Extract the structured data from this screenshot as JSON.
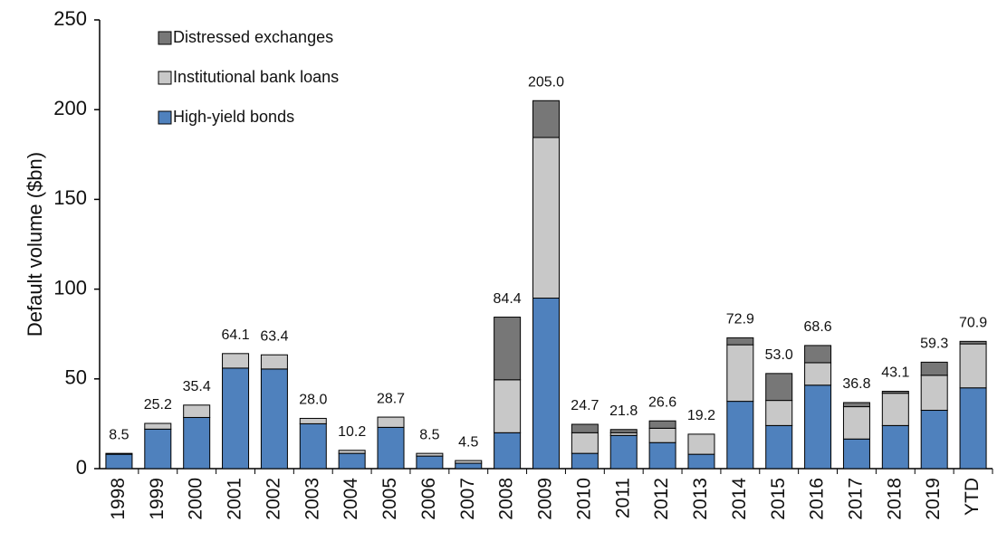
{
  "chart_data": {
    "type": "stacked_bar",
    "y_label": "Default volume ($bn)",
    "categories": [
      "1998",
      "1999",
      "2000",
      "2001",
      "2002",
      "2003",
      "2004",
      "2005",
      "2006",
      "2007",
      "2008",
      "2009",
      "2010",
      "2011",
      "2012",
      "2013",
      "2014",
      "2015",
      "2016",
      "2017",
      "2018",
      "2019",
      "YTD"
    ],
    "series": [
      {
        "name": "High-yield bonds",
        "color": "#4f81bd",
        "values": [
          8.0,
          22,
          28.5,
          56,
          55.5,
          25,
          8.5,
          23,
          7,
          3,
          20,
          95,
          8.5,
          18.5,
          14.5,
          8,
          37.5,
          24,
          46.5,
          16.5,
          24,
          32.5,
          45
        ]
      },
      {
        "name": "Institutional bank loans",
        "color": "#c8c8c8",
        "values": [
          0,
          3.2,
          6.9,
          8.1,
          7.9,
          3,
          1.7,
          5.7,
          1.5,
          1.5,
          29.5,
          89.5,
          11.5,
          1.5,
          8,
          11.2,
          31.5,
          14,
          12.5,
          18,
          18,
          19.5,
          24.5
        ]
      },
      {
        "name": "Distressed exchanges",
        "color": "#777777",
        "values": [
          0.5,
          0,
          0,
          0,
          0,
          0,
          0,
          0,
          0,
          0,
          34.9,
          20.5,
          4.7,
          1.8,
          4.1,
          0,
          3.9,
          15,
          9.6,
          2.3,
          1.1,
          7.3,
          1.4
        ]
      }
    ],
    "totals": [
      8.5,
      25.2,
      35.4,
      64.1,
      63.4,
      28.0,
      10.2,
      28.7,
      8.5,
      4.5,
      84.4,
      205.0,
      24.7,
      21.8,
      26.6,
      19.2,
      72.9,
      53.0,
      68.6,
      36.8,
      43.1,
      59.3,
      70.9
    ],
    "total_labels": [
      "8.5",
      "25.2",
      "35.4",
      "64.1",
      "63.4",
      "28.0",
      "10.2",
      "28.7",
      "8.5",
      "4.5",
      "84.4",
      "205.0",
      "24.7",
      "21.8",
      "26.6",
      "19.2",
      "72.9",
      "53.0",
      "68.6",
      "36.8",
      "43.1",
      "59.3",
      "70.9"
    ],
    "ylim": [
      0,
      250
    ],
    "yticks": [
      0,
      50,
      100,
      150,
      200,
      250
    ],
    "legend": "upper left"
  }
}
